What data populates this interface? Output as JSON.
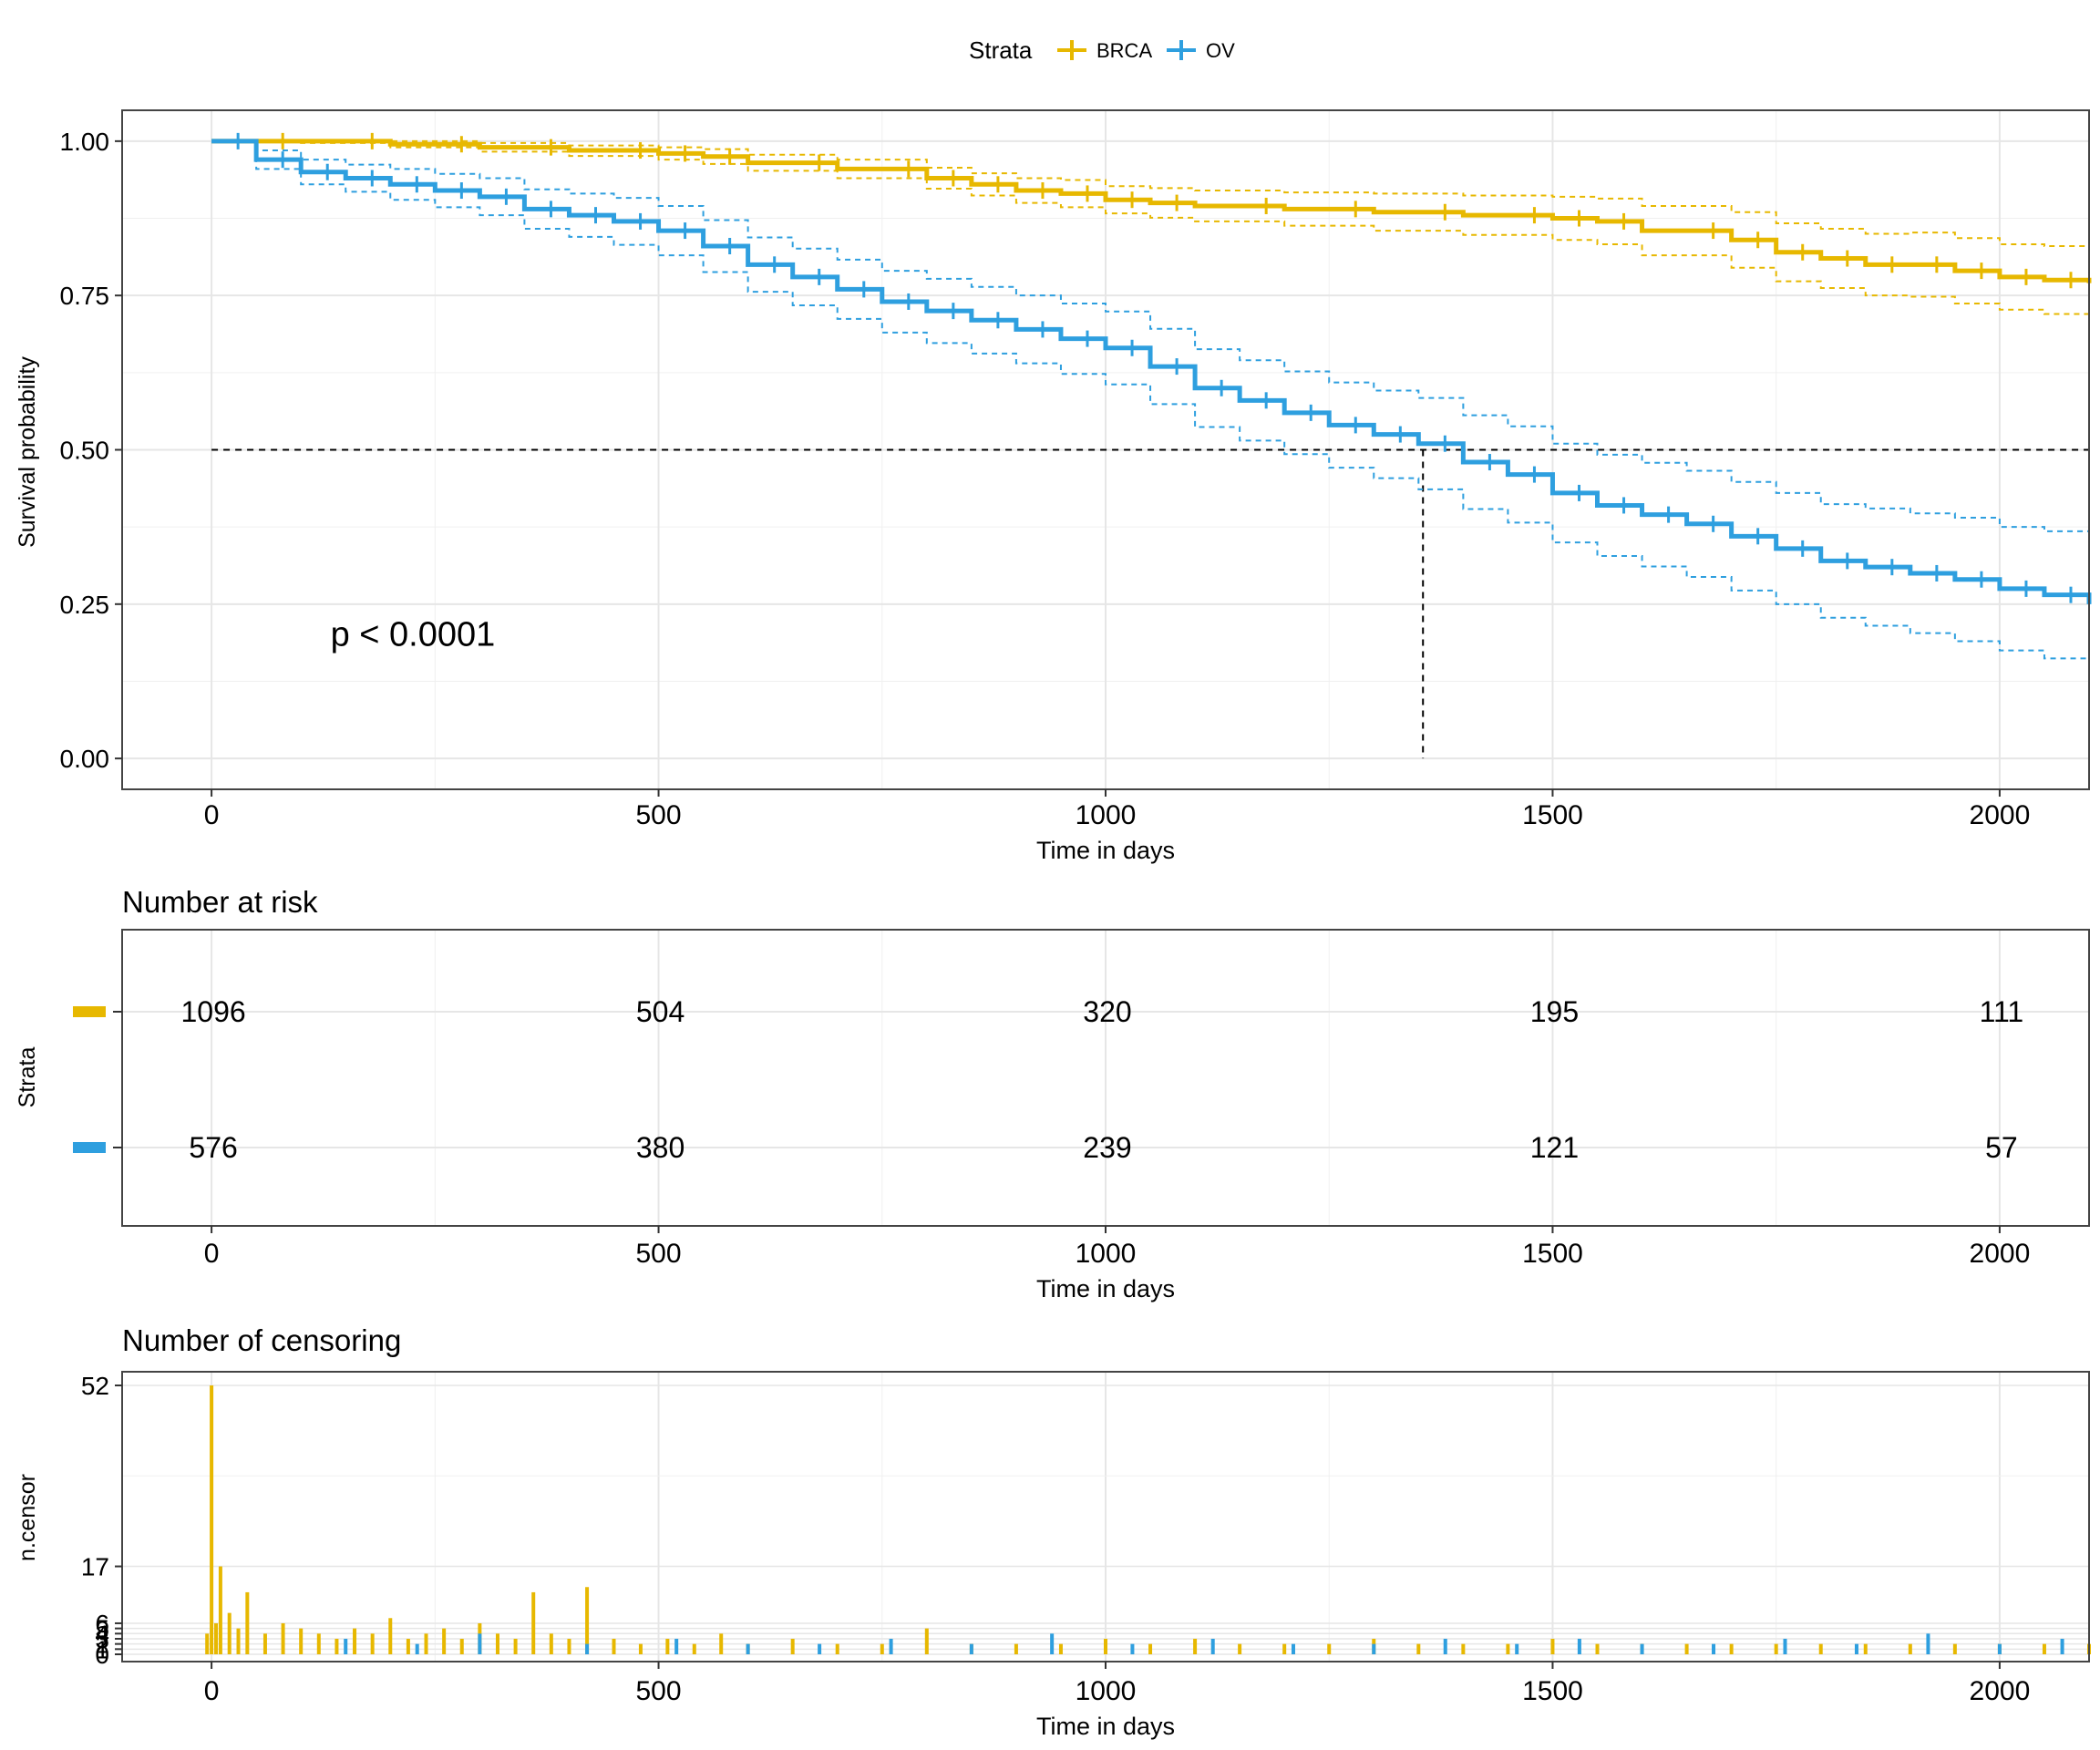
{
  "legend": {
    "title": "Strata",
    "entries": [
      {
        "label": "BRCA",
        "color": "#E7B800"
      },
      {
        "label": "OV",
        "color": "#2E9FDF"
      }
    ]
  },
  "chart_data": [
    {
      "type": "line",
      "subtype": "kaplan-meier",
      "title": "",
      "xlabel": "Time in days",
      "ylabel": "Survival probability",
      "xlim": [
        -100,
        2100
      ],
      "ylim": [
        -0.05,
        1.05
      ],
      "x_ticks": [
        0,
        500,
        1000,
        1500,
        2000
      ],
      "y_ticks": [
        0.0,
        0.25,
        0.5,
        0.75,
        1.0
      ],
      "y_tick_labels": [
        "0.00",
        "0.25",
        "0.50",
        "0.75",
        "1.00"
      ],
      "grid": true,
      "legend_position": "top",
      "annotation": "p < 0.0001",
      "annotation_pos": {
        "x": 235,
        "y": 0.2
      },
      "median_line": {
        "y": 0.5,
        "x_end": 1355
      },
      "series": [
        {
          "name": "BRCA",
          "color": "#E7B800",
          "x": [
            0,
            100,
            200,
            300,
            400,
            500,
            550,
            600,
            700,
            800,
            850,
            900,
            950,
            1000,
            1050,
            1100,
            1200,
            1300,
            1400,
            1500,
            1550,
            1600,
            1700,
            1750,
            1800,
            1850,
            1900,
            1950,
            2000,
            2050,
            2100
          ],
          "y": [
            1.0,
            1.0,
            0.995,
            0.99,
            0.985,
            0.98,
            0.975,
            0.965,
            0.955,
            0.94,
            0.93,
            0.92,
            0.915,
            0.905,
            0.9,
            0.895,
            0.89,
            0.885,
            0.88,
            0.875,
            0.87,
            0.855,
            0.84,
            0.82,
            0.81,
            0.8,
            0.8,
            0.79,
            0.78,
            0.775,
            0.77
          ],
          "lower": [
            1.0,
            0.997,
            0.99,
            0.983,
            0.976,
            0.97,
            0.963,
            0.952,
            0.94,
            0.923,
            0.912,
            0.9,
            0.893,
            0.883,
            0.876,
            0.87,
            0.863,
            0.855,
            0.848,
            0.84,
            0.833,
            0.815,
            0.795,
            0.773,
            0.762,
            0.75,
            0.748,
            0.737,
            0.727,
            0.72,
            0.715
          ],
          "upper": [
            1.0,
            1.0,
            1.0,
            0.997,
            0.993,
            0.99,
            0.987,
            0.978,
            0.97,
            0.957,
            0.948,
            0.94,
            0.937,
            0.927,
            0.924,
            0.92,
            0.917,
            0.915,
            0.912,
            0.91,
            0.907,
            0.895,
            0.885,
            0.867,
            0.858,
            0.85,
            0.852,
            0.843,
            0.833,
            0.83,
            0.825
          ]
        },
        {
          "name": "OV",
          "color": "#2E9FDF",
          "x": [
            0,
            50,
            100,
            150,
            200,
            250,
            300,
            350,
            400,
            450,
            500,
            550,
            600,
            650,
            700,
            750,
            800,
            850,
            900,
            950,
            1000,
            1050,
            1100,
            1150,
            1200,
            1250,
            1300,
            1350,
            1400,
            1450,
            1500,
            1550,
            1600,
            1650,
            1700,
            1750,
            1800,
            1850,
            1900,
            1950,
            2000,
            2050,
            2100
          ],
          "y": [
            1.0,
            0.97,
            0.95,
            0.94,
            0.93,
            0.92,
            0.91,
            0.89,
            0.88,
            0.87,
            0.855,
            0.83,
            0.8,
            0.78,
            0.76,
            0.74,
            0.725,
            0.71,
            0.695,
            0.68,
            0.665,
            0.635,
            0.6,
            0.58,
            0.56,
            0.54,
            0.525,
            0.51,
            0.48,
            0.46,
            0.43,
            0.41,
            0.395,
            0.38,
            0.36,
            0.34,
            0.32,
            0.31,
            0.3,
            0.29,
            0.275,
            0.265,
            0.25
          ],
          "lower": [
            1.0,
            0.955,
            0.93,
            0.918,
            0.905,
            0.893,
            0.88,
            0.858,
            0.845,
            0.832,
            0.815,
            0.788,
            0.756,
            0.734,
            0.712,
            0.69,
            0.673,
            0.656,
            0.64,
            0.623,
            0.606,
            0.574,
            0.537,
            0.515,
            0.493,
            0.471,
            0.454,
            0.436,
            0.404,
            0.382,
            0.35,
            0.328,
            0.311,
            0.294,
            0.272,
            0.25,
            0.228,
            0.215,
            0.203,
            0.19,
            0.175,
            0.162,
            0.2
          ],
          "upper": [
            1.0,
            0.985,
            0.97,
            0.962,
            0.955,
            0.947,
            0.94,
            0.922,
            0.915,
            0.908,
            0.895,
            0.872,
            0.844,
            0.826,
            0.808,
            0.79,
            0.777,
            0.764,
            0.75,
            0.737,
            0.724,
            0.696,
            0.663,
            0.645,
            0.627,
            0.609,
            0.596,
            0.584,
            0.556,
            0.538,
            0.51,
            0.492,
            0.479,
            0.466,
            0.448,
            0.43,
            0.412,
            0.405,
            0.397,
            0.39,
            0.375,
            0.368,
            0.31
          ]
        }
      ]
    },
    {
      "type": "table",
      "title": "Number at risk",
      "xlabel": "Time in days",
      "ylabel": "Strata",
      "xlim": [
        -100,
        2100
      ],
      "x_ticks": [
        0,
        500,
        1000,
        1500,
        2000
      ],
      "rows": [
        {
          "name": "BRCA",
          "color": "#E7B800",
          "values": [
            "1096",
            "504",
            "320",
            "195",
            "111"
          ]
        },
        {
          "name": "OV",
          "color": "#2E9FDF",
          "values": [
            "576",
            "380",
            "239",
            "121",
            "57"
          ]
        }
      ]
    },
    {
      "type": "bar",
      "title": "Number of censoring",
      "xlabel": "Time in days",
      "ylabel": "n.censor",
      "xlim": [
        -100,
        2100
      ],
      "ylim": [
        0,
        54
      ],
      "x_ticks": [
        0,
        500,
        1000,
        1500,
        2000
      ],
      "y_ticks": [
        0,
        1,
        2,
        3,
        4,
        5,
        6,
        17,
        52
      ],
      "y_tick_labels": [
        "0",
        "1",
        "2",
        "3",
        "4",
        "5",
        "6",
        "17",
        "52"
      ],
      "series": [
        {
          "name": "BRCA",
          "color": "#E7B800",
          "x": [
            -5,
            0,
            5,
            10,
            20,
            30,
            40,
            60,
            80,
            100,
            120,
            140,
            160,
            180,
            200,
            220,
            240,
            260,
            280,
            300,
            320,
            340,
            360,
            380,
            400,
            420,
            450,
            480,
            510,
            540,
            570,
            600,
            650,
            700,
            750,
            800,
            850,
            900,
            950,
            1000,
            1050,
            1100,
            1150,
            1200,
            1250,
            1300,
            1350,
            1400,
            1450,
            1500,
            1550,
            1600,
            1650,
            1700,
            1750,
            1800,
            1850,
            1900,
            1950,
            2000,
            2050,
            2100
          ],
          "values": [
            4,
            52,
            6,
            17,
            8,
            5,
            12,
            4,
            6,
            5,
            4,
            3,
            5,
            4,
            7,
            3,
            4,
            5,
            3,
            6,
            4,
            3,
            12,
            4,
            3,
            13,
            3,
            2,
            3,
            2,
            4,
            2,
            3,
            2,
            2,
            5,
            2,
            2,
            2,
            3,
            2,
            3,
            2,
            2,
            2,
            3,
            2,
            2,
            2,
            3,
            2,
            2,
            2,
            2,
            2,
            2,
            2,
            2,
            2,
            2,
            2,
            2
          ]
        },
        {
          "name": "OV",
          "color": "#2E9FDF",
          "x": [
            150,
            230,
            300,
            420,
            520,
            600,
            680,
            760,
            850,
            940,
            1030,
            1120,
            1210,
            1300,
            1380,
            1460,
            1530,
            1600,
            1680,
            1760,
            1840,
            1920,
            2000,
            2070
          ],
          "values": [
            3,
            2,
            4,
            2,
            3,
            2,
            2,
            3,
            2,
            4,
            2,
            3,
            2,
            2,
            3,
            2,
            3,
            2,
            2,
            3,
            2,
            4,
            2,
            3
          ]
        }
      ]
    }
  ]
}
